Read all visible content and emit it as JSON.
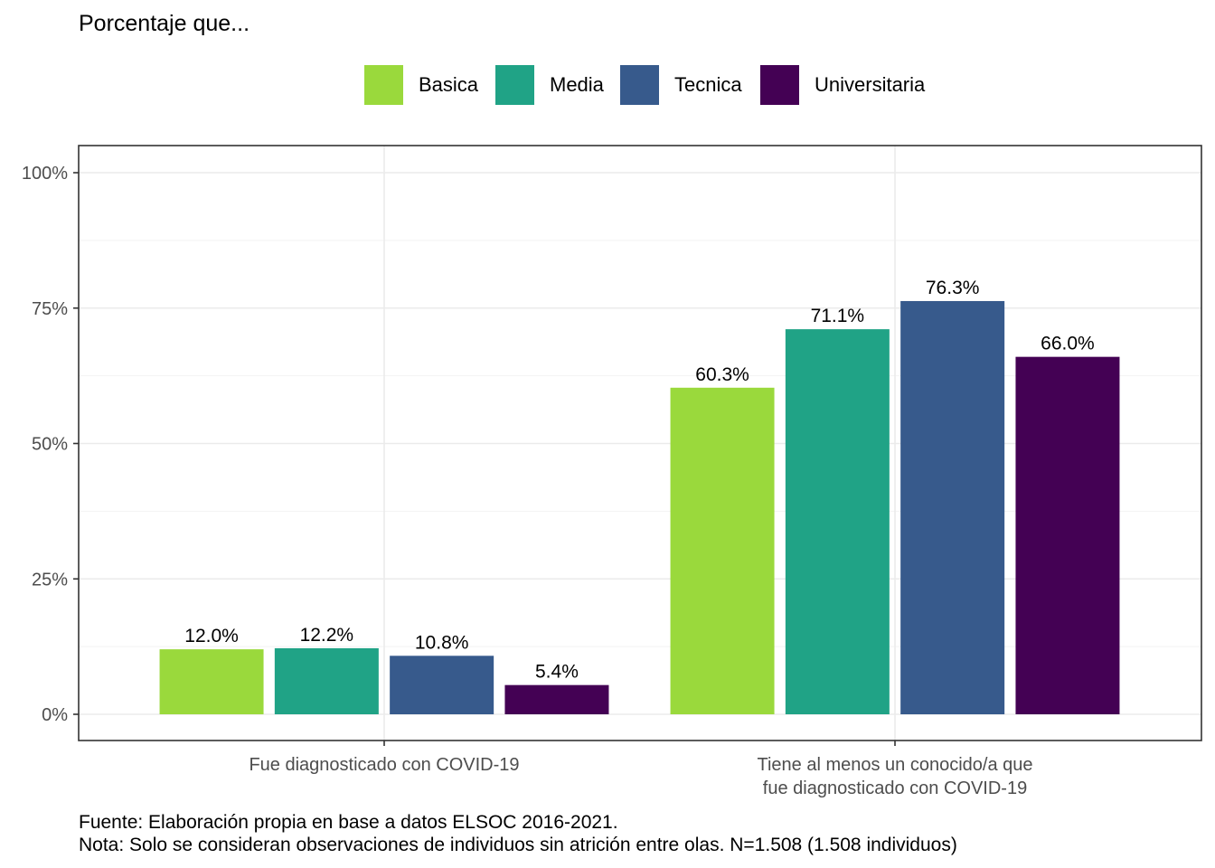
{
  "chart_data": {
    "type": "bar",
    "title": "Porcentaje que...",
    "categories": [
      [
        "Fue diagnosticado con COVID-19"
      ],
      [
        "Tiene al menos un conocido/a que",
        "fue diagnosticado con COVID-19"
      ]
    ],
    "series": [
      {
        "name": "Basica",
        "color": "#9ad93c",
        "values": [
          12.0,
          60.3
        ],
        "labels": [
          "12.0%",
          "60.3%"
        ]
      },
      {
        "name": "Media",
        "color": "#20a386",
        "values": [
          12.2,
          71.1
        ],
        "labels": [
          "12.2%",
          "71.1%"
        ]
      },
      {
        "name": "Tecnica",
        "color": "#375a8c",
        "values": [
          10.8,
          76.3
        ],
        "labels": [
          "10.8%",
          "76.3%"
        ]
      },
      {
        "name": "Universitaria",
        "color": "#440154",
        "values": [
          5.4,
          66.0
        ],
        "labels": [
          "5.4%",
          "66.0%"
        ]
      }
    ],
    "y_ticks": [
      0,
      25,
      50,
      75,
      100
    ],
    "y_tick_labels": [
      "0%",
      "25%",
      "50%",
      "75%",
      "100%"
    ],
    "ylim": [
      0,
      100
    ],
    "grid": true,
    "legend_position": "top",
    "xlabel": "",
    "ylabel": ""
  },
  "caption": {
    "source": "Fuente: Elaboración propia en base a datos ELSOC 2016-2021.",
    "note": "Nota: Solo se consideran observaciones de individuos sin atrición entre olas. N=1.508 (1.508 individuos)"
  }
}
